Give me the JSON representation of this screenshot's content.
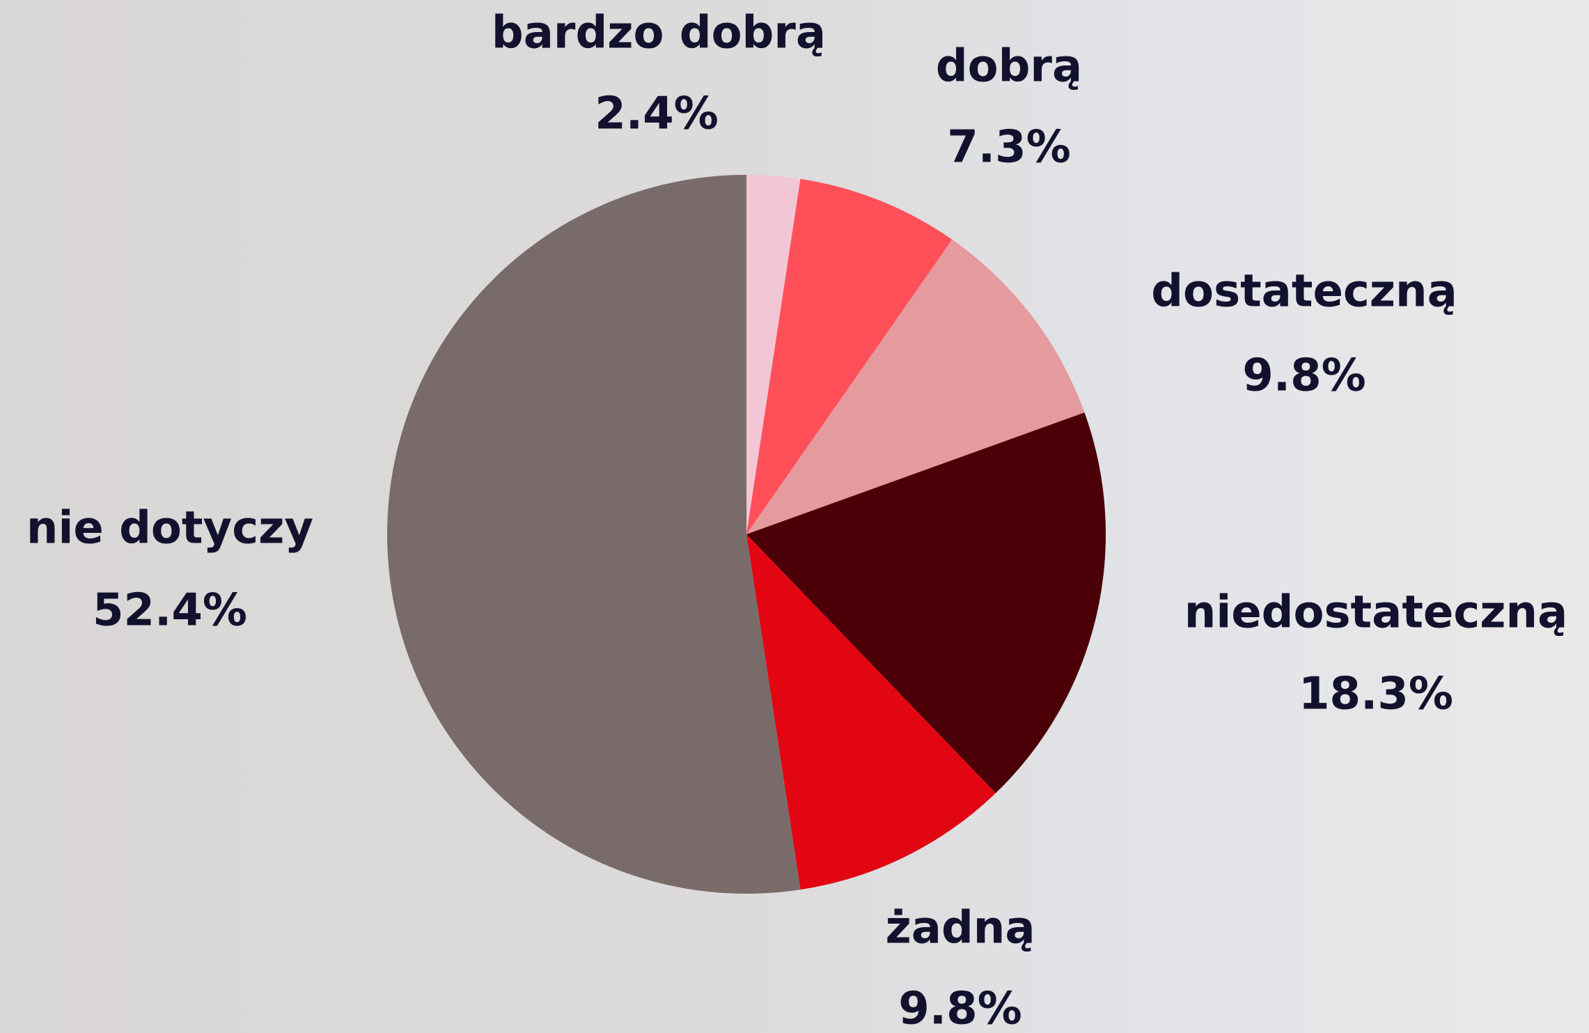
{
  "chart_data": {
    "type": "pie",
    "categories": [
      "bardzo dobrą",
      "dobrą",
      "dostateczną",
      "niedostateczną",
      "żadną",
      "nie dotyczy"
    ],
    "values": [
      2.4,
      7.3,
      9.8,
      18.3,
      9.8,
      52.4
    ],
    "value_labels": [
      "2.4%",
      "7.3%",
      "9.8%",
      "18.3%",
      "9.8%",
      "52.4%"
    ],
    "colors": [
      "#f3c6d6",
      "#ff505a",
      "#e59a9e",
      "#4a0006",
      "#e20613",
      "#7a6b6b"
    ]
  }
}
